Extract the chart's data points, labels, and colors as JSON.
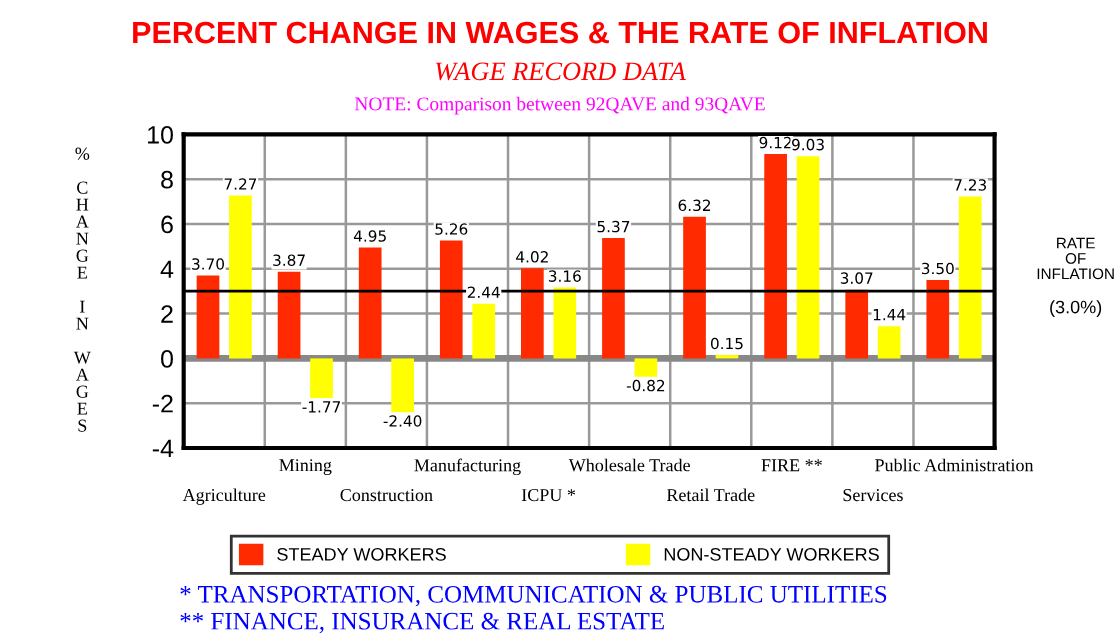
{
  "chart_data": {
    "type": "bar",
    "title": "PERCENT CHANGE IN WAGES & THE RATE OF INFLATION",
    "subtitle": "WAGE RECORD DATA",
    "ylabel": "% CHANGE IN WAGES",
    "categories": [
      "Agriculture",
      "Mining",
      "Construction",
      "Manufacturing",
      "ICPU *",
      "Wholesale Trade",
      "Retail Trade",
      "FIRE **",
      "Services",
      "Public Administration"
    ],
    "series": [
      {
        "name": "STEADY WORKERS",
        "color": "#ff2a00",
        "values": [
          3.7,
          3.87,
          4.95,
          5.26,
          4.02,
          5.37,
          6.32,
          9.12,
          3.07,
          3.5
        ],
        "value_labels": [
          "3.70",
          "3.87",
          "4.95",
          "5.26",
          "4.02",
          "5.37",
          "6.32",
          "9.12",
          "3.07",
          "3.50"
        ]
      },
      {
        "name": "NON-STEADY WORKERS",
        "color": "#ffff00",
        "values": [
          7.27,
          -1.77,
          -2.4,
          2.44,
          3.16,
          -0.82,
          0.15,
          9.03,
          1.44,
          7.23
        ],
        "value_labels": [
          "7.27",
          "-1.77",
          "-2.40",
          "2.44",
          "3.16",
          "-0.82",
          "0.15",
          "9.03",
          "1.44",
          "7.23"
        ]
      }
    ],
    "ylim": [
      -4,
      10
    ],
    "yticks": [
      -4,
      -2,
      0,
      2,
      4,
      6,
      8,
      10
    ],
    "grid": true,
    "legend": "bottom",
    "ref_lines": [
      {
        "axis": "y",
        "value": 3.0,
        "label": "RATE OF INFLATION (3.0%)",
        "color": "#000000"
      }
    ],
    "annotations": [
      "NOTE: Comparison between 92QAVE and 93QAVE",
      "* TRANSPORTATION, COMMUNICATION & PUBLIC UTILITIES",
      "** FINANCE, INSURANCE & REAL ESTATE"
    ]
  }
}
